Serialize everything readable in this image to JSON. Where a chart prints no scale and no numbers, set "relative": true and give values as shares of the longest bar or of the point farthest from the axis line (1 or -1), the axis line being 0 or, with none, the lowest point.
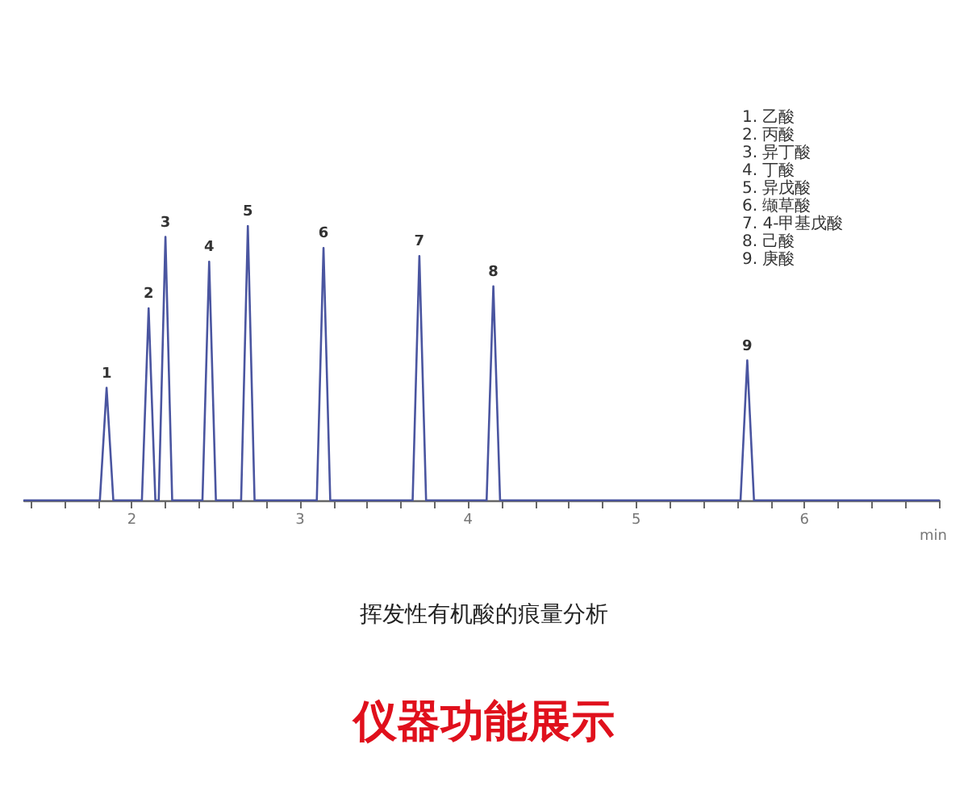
{
  "chart_data": {
    "type": "line",
    "relative": true,
    "title": "挥发性有机酸的痕量分析",
    "subtitle": "仪器功能展示",
    "xlabel": "min",
    "x": [
      1.36,
      1.81,
      1.85,
      1.89,
      2.06,
      2.1,
      2.14,
      2.16,
      2.2,
      2.24,
      2.42,
      2.46,
      2.5,
      2.65,
      2.69,
      2.73,
      3.1,
      3.14,
      3.18,
      3.67,
      3.71,
      3.75,
      4.11,
      4.15,
      4.19,
      5.62,
      5.66,
      5.7,
      6.8
    ],
    "series": [
      {
        "color": "#4a55a0",
        "values": [
          0,
          0,
          0.41,
          0,
          0,
          0.7,
          0,
          0,
          0.96,
          0,
          0,
          0.87,
          0,
          0,
          1.0,
          0,
          0,
          0.92,
          0,
          0,
          0.89,
          0,
          0,
          0.78,
          0,
          0,
          0.51,
          0,
          0
        ]
      }
    ],
    "xlim": [
      1.36,
      6.8
    ],
    "xticks": [
      {
        "value": 1.4,
        "label": null
      },
      {
        "value": 1.6,
        "label": null
      },
      {
        "value": 1.8,
        "label": null
      },
      2,
      {
        "value": 2.2,
        "label": null
      },
      {
        "value": 2.4,
        "label": null
      },
      {
        "value": 2.6,
        "label": null
      },
      {
        "value": 2.8,
        "label": null
      },
      3,
      {
        "value": 3.2,
        "label": null
      },
      {
        "value": 3.4,
        "label": null
      },
      {
        "value": 3.6,
        "label": null
      },
      {
        "value": 3.8,
        "label": null
      },
      4,
      {
        "value": 4.2,
        "label": null
      },
      {
        "value": 4.4,
        "label": null
      },
      {
        "value": 4.6,
        "label": null
      },
      {
        "value": 4.8,
        "label": null
      },
      5,
      {
        "value": 5.2,
        "label": null
      },
      {
        "value": 5.4,
        "label": null
      },
      {
        "value": 5.6,
        "label": null
      },
      {
        "value": 5.8,
        "label": null
      },
      6,
      {
        "value": 6.2,
        "label": null
      },
      {
        "value": 6.4,
        "label": null
      },
      {
        "value": 6.6,
        "label": null
      },
      {
        "value": 6.8,
        "label": null
      }
    ],
    "grid": false,
    "marker": "none",
    "line_style": "solid",
    "annotations": [
      {
        "text": "1",
        "x": 1.85,
        "y": 0.41
      },
      {
        "text": "2",
        "x": 2.1,
        "y": 0.7
      },
      {
        "text": "3",
        "x": 2.2,
        "y": 0.96
      },
      {
        "text": "4",
        "x": 2.46,
        "y": 0.87
      },
      {
        "text": "5",
        "x": 2.69,
        "y": 1.0
      },
      {
        "text": "6",
        "x": 3.14,
        "y": 0.92
      },
      {
        "text": "7",
        "x": 3.71,
        "y": 0.89
      },
      {
        "text": "8",
        "x": 4.15,
        "y": 0.78
      },
      {
        "text": "9",
        "x": 5.66,
        "y": 0.51
      },
      "1. 乙酸",
      "2. 丙酸",
      "3. 异丁酸",
      "4. 丁酸",
      "5. 异戊酸",
      "6. 缬草酸",
      "7. 4-甲基戊酸",
      "8. 己酸",
      "9. 庚酸"
    ]
  }
}
